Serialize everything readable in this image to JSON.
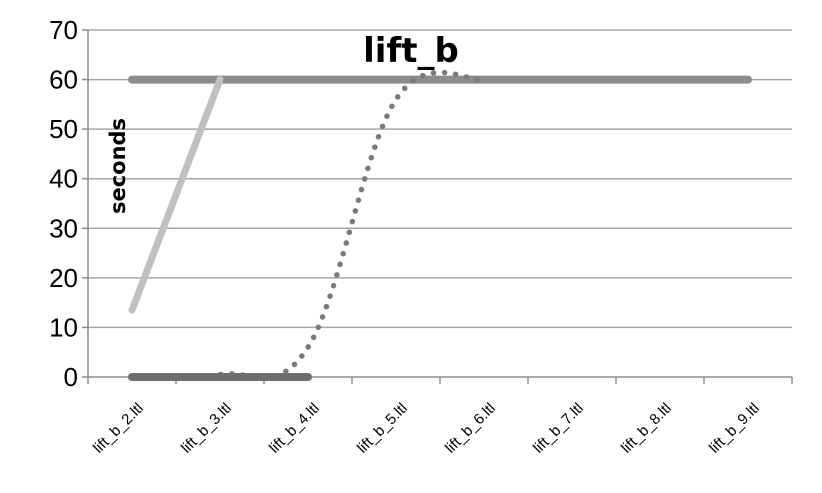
{
  "chart_data": {
    "type": "line",
    "title": "lift_b",
    "ylabel": "seconds",
    "xlabel": "",
    "ylim": [
      0,
      70
    ],
    "yticks": [
      0,
      10,
      20,
      30,
      40,
      50,
      60,
      70
    ],
    "categories": [
      "lift_b_2.ltl",
      "lift_b_3.ltl",
      "lift_b_4.ltl",
      "lift_b_5.ltl",
      "lift_b_6.ltl",
      "lift_b_7.ltl",
      "lift_b_8.ltl",
      "lift_b_9.ltl"
    ],
    "grid": true,
    "legend": "none",
    "series": [
      {
        "style": "solid-thick",
        "color": "#8c8c8c",
        "x": [
          "lift_b_2.ltl",
          "lift_b_3.ltl",
          "lift_b_4.ltl",
          "lift_b_5.ltl",
          "lift_b_6.ltl",
          "lift_b_7.ltl",
          "lift_b_8.ltl",
          "lift_b_9.ltl"
        ],
        "values": [
          60,
          60,
          60,
          60,
          60,
          60,
          60,
          60
        ]
      },
      {
        "style": "solid",
        "color": "#c0c0c0",
        "x": [
          "lift_b_2.ltl",
          "lift_b_3.ltl"
        ],
        "values": [
          13.5,
          60
        ]
      },
      {
        "style": "dotted",
        "color": "#7a7a7a",
        "x": [
          "lift_b_2.ltl",
          "lift_b_3.ltl",
          "lift_b_4.ltl",
          "lift_b_5.ltl",
          "lift_b_6.ltl"
        ],
        "values": [
          0,
          0.5,
          6,
          56,
          60
        ]
      },
      {
        "style": "solid-thick",
        "color": "#6e6e6e",
        "x": [
          "lift_b_2.ltl",
          "lift_b_3.ltl",
          "lift_b_4.ltl"
        ],
        "values": [
          0,
          0,
          0
        ]
      }
    ]
  }
}
